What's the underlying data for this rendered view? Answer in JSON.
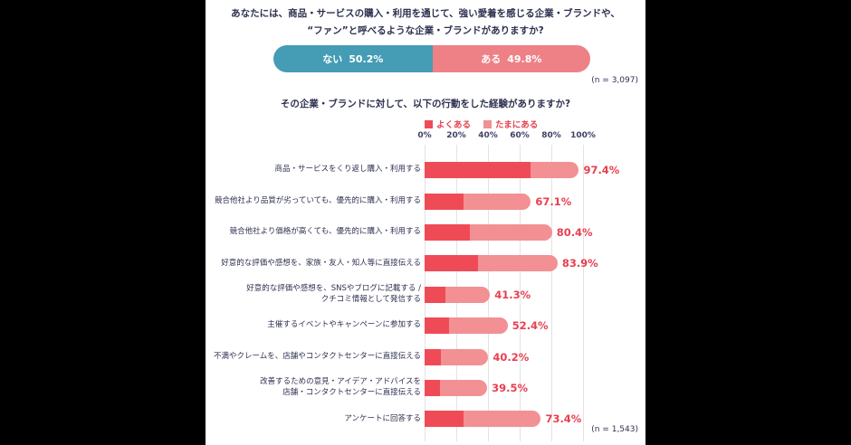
{
  "colors": {
    "page_background": "#000000",
    "panel_background": "#ffffff",
    "title_text": "#2e3150",
    "nai_teal": "#459cb5",
    "aru_pink": "#ee8186",
    "often_red": "#ef4b56",
    "sometimes_pink": "#f29094",
    "value_red": "#e7404f",
    "gridline": "#e3e3e3"
  },
  "question1": {
    "title_line1": "あなたには、商品・サービスの購入・利用を通じて、強い愛着を感じる企業・ブランドや、",
    "title_line2": "“ファン”と呼べるような企業・ブランドがありますか?",
    "segments": [
      {
        "label": "ない",
        "value": 50.2,
        "value_label": "50.2%",
        "color": "#459cb5"
      },
      {
        "label": "ある",
        "value": 49.8,
        "value_label": "49.8%",
        "color": "#ee8186"
      }
    ],
    "sample_size": "(n = 3,097)"
  },
  "question2": {
    "title": "その企業・ブランドに対して、以下の行動をした経験がありますか?",
    "sample_size": "(n = 1,543)"
  },
  "chart_data": [
    {
      "type": "bar",
      "orientation": "horizontal",
      "stacked": true,
      "title": "あなたには、商品・サービスの購入・利用を通じて、強い愛着を感じる企業・ブランドや、“ファン”と呼べるような企業・ブランドがありますか?",
      "series": [
        {
          "name": "ない",
          "values": [
            50.2
          ]
        },
        {
          "name": "ある",
          "values": [
            49.8
          ]
        }
      ],
      "n_label": "(n = 3,097)"
    },
    {
      "type": "bar",
      "orientation": "horizontal",
      "stacked": true,
      "title": "その企業・ブランドに対して、以下の行動をした経験がありますか?",
      "legend": [
        "よくある",
        "たまにある"
      ],
      "legend_position": "top",
      "x_axis": {
        "ticks": [
          "0%",
          "20%",
          "40%",
          "60%",
          "80%",
          "100%"
        ],
        "range": [
          0,
          100
        ],
        "grid": true
      },
      "categories": [
        "商品・サービスをくり返し購入・利用する",
        "競合他社より品質が劣っていても、優先的に購入・利用する",
        "競合他社より価格が高くても、優先的に購入・利用する",
        "好意的な評価や感想を、家族・友人・知人等に直接伝える",
        "好意的な評価や感想を、SNSやブログに記載する /\nクチコミ情報として発信する",
        "主催するイベントやキャンペーンに参加する",
        "不満やクレームを、店舗やコンタクトセンターに直接伝える",
        "改善するための意見・アイデア・アドバイスを\n店舗・コンタクトセンターに直接伝える",
        "アンケートに回答する"
      ],
      "series": [
        {
          "name": "よくある",
          "values": [
            67.0,
            24.5,
            28.5,
            34.0,
            13.0,
            15.5,
            10.5,
            9.5,
            24.5
          ]
        },
        {
          "name": "たまにある",
          "values": [
            30.4,
            42.6,
            51.9,
            49.9,
            28.3,
            36.9,
            29.7,
            30.0,
            48.9
          ]
        }
      ],
      "totals": [
        97.4,
        67.1,
        80.4,
        83.9,
        41.3,
        52.4,
        40.2,
        39.5,
        73.4
      ],
      "total_labels": [
        "97.4%",
        "67.1%",
        "80.4%",
        "83.9%",
        "41.3%",
        "52.4%",
        "40.2%",
        "39.5%",
        "73.4%"
      ],
      "n_label": "(n = 1,543)"
    }
  ]
}
